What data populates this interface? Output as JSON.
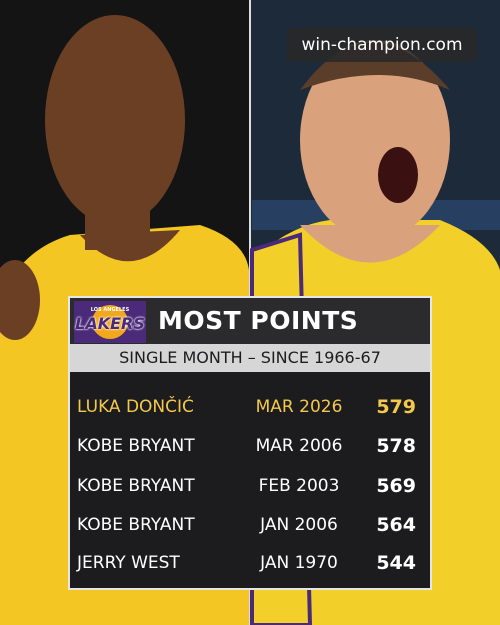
{
  "watermark": "win-champion.com",
  "logo": {
    "top": "LOS ANGELES",
    "text": "LAKERS"
  },
  "title": "MOST POINTS",
  "subtitle": "SINGLE MONTH – SINCE 1966-67",
  "table": {
    "rows": [
      [
        "LUKA DONČIĆ",
        "MAR 2026",
        579
      ],
      [
        "KOBE BRYANT",
        "MAR 2006",
        578
      ],
      [
        "KOBE BRYANT",
        "FEB 2003",
        569
      ],
      [
        "KOBE BRYANT",
        "JAN 2006",
        564
      ],
      [
        "JERRY WEST",
        "JAN 1970",
        544
      ]
    ]
  }
}
